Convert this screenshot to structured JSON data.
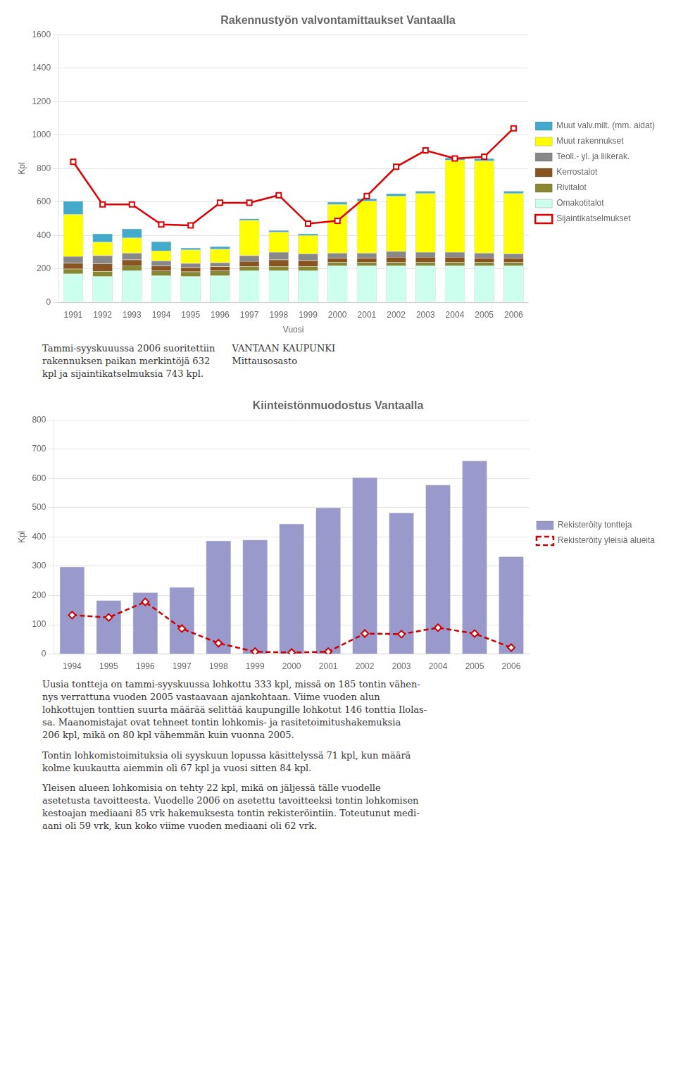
{
  "chart_data": [
    {
      "type": "bar",
      "title": "Rakennustyön valvontamittaukset Vantaalla",
      "categories": [
        "1991",
        "1992",
        "1993",
        "1994",
        "1995",
        "1996",
        "1997",
        "1998",
        "1999",
        "2000",
        "2001",
        "2002",
        "2003",
        "2004",
        "2005",
        "2006"
      ],
      "stacked": true,
      "series": [
        {
          "name": "Omakotitalot",
          "type": "bar",
          "color": "#ccffee",
          "values": [
            170,
            155,
            190,
            160,
            155,
            160,
            190,
            190,
            190,
            220,
            220,
            220,
            220,
            220,
            220,
            220
          ]
        },
        {
          "name": "Rivitalot",
          "type": "bar",
          "color": "#888833",
          "values": [
            30,
            30,
            30,
            28,
            28,
            28,
            25,
            25,
            25,
            20,
            20,
            20,
            20,
            20,
            20,
            20
          ]
        },
        {
          "name": "Kerrostalot",
          "type": "bar",
          "color": "#885522",
          "values": [
            35,
            45,
            35,
            30,
            25,
            25,
            30,
            40,
            35,
            25,
            25,
            30,
            30,
            30,
            25,
            25
          ]
        },
        {
          "name": "Teoll.- yl. ja liikerak.",
          "type": "bar",
          "color": "#888888",
          "values": [
            40,
            50,
            40,
            30,
            25,
            25,
            35,
            45,
            40,
            30,
            30,
            35,
            30,
            30,
            30,
            25
          ]
        },
        {
          "name": "Muut rakennukset",
          "type": "bar",
          "color": "#ffff00",
          "values": [
            250,
            80,
            90,
            60,
            80,
            80,
            210,
            120,
            110,
            290,
            310,
            330,
            350,
            550,
            550,
            360
          ]
        },
        {
          "name": "Muut valv.milt. (mm. aidat)",
          "type": "bar",
          "color": "#44aacc",
          "values": [
            80,
            50,
            55,
            55,
            12,
            15,
            10,
            10,
            10,
            15,
            15,
            15,
            15,
            15,
            15,
            15
          ]
        },
        {
          "name": "Sijaintikatselmukset",
          "type": "line",
          "color": "#dd0000",
          "marker": "square",
          "values": [
            840,
            585,
            585,
            465,
            460,
            595,
            595,
            640,
            470,
            487,
            635,
            810,
            908,
            860,
            870,
            1040
          ]
        }
      ],
      "xlabel": "Vuosi",
      "ylabel": "Kpl",
      "ylim": [
        0,
        1600
      ],
      "yticks": [
        0,
        200,
        400,
        600,
        800,
        1000,
        1200,
        1400,
        1600
      ],
      "grid": true,
      "legend": "right",
      "annotations": [
        "Tammi-syyskuuussa 2006 suoritettiin\nrakennuksen paikan merkintöjä 632\nkpl ja sijaintikatselmuksia 743 kpl.",
        "VANTAAN KAUPUNKI\nMittausosasto"
      ]
    },
    {
      "type": "bar",
      "title": "Kiinteistönmuodostus Vantaalla",
      "categories": [
        "1994",
        "1995",
        "1996",
        "1997",
        "1998",
        "1999",
        "2000",
        "2001",
        "2002",
        "2003",
        "2004",
        "2005",
        "2006"
      ],
      "series": [
        {
          "name": "Rekisteröity tontteja",
          "type": "bar",
          "color": "#9999cc",
          "values": [
            298,
            183,
            210,
            228,
            387,
            390,
            445,
            500,
            603,
            483,
            578,
            660,
            333
          ]
        },
        {
          "name": "Rekisteröity yleisiä alueita",
          "type": "line",
          "color": "#cc0000",
          "marker": "diamond",
          "line_style": "dashed",
          "values": [
            133,
            125,
            178,
            87,
            37,
            8,
            5,
            8,
            70,
            68,
            90,
            70,
            22
          ]
        }
      ],
      "ylabel": "Kpl",
      "ylim": [
        0,
        800
      ],
      "yticks": [
        0,
        100,
        200,
        300,
        400,
        500,
        600,
        700,
        800
      ],
      "grid": true,
      "legend": "right",
      "annotations": [
        "Uusia tontteja on tammi-syyskuussa lohkottu 333 kpl, missä on 185 tontin vähen-\nnys verrattuna vuoden 2005 vastaavaan ajankohtaan. Viime vuoden alun\nlohkottujen tonttien suurta määrää selittää kaupungille lohkotut 146 tonttia Ilolas-\nsa. Maanomistajat ovat tehneet tontin lohkomis- ja rasitetoimitushakemuksia\n206 kpl, mikä on 80 kpl vähemmän kuin vuonna 2005.",
        "Tontin lohkomistoimituksia oli syyskuun lopussa käsittelyssä 71 kpl, kun määrä\nkolme kuukautta aiemmin oli 67 kpl ja vuosi sitten 84 kpl.",
        "Yleisen alueen lohkomisia on tehty 22 kpl, mikä on jäljessä tälle vuodelle\nasetetusta tavoitteesta. Vuodelle 2006 on asetettu tavoitteeksi tontin lohkomisen\nkestoajan mediaani 85 vrk hakemuksesta tontin rekisteröintiin. Toteutunut medi-\naani oli 59 vrk, kun koko viime vuoden mediaani oli 62 vrk."
      ]
    }
  ]
}
